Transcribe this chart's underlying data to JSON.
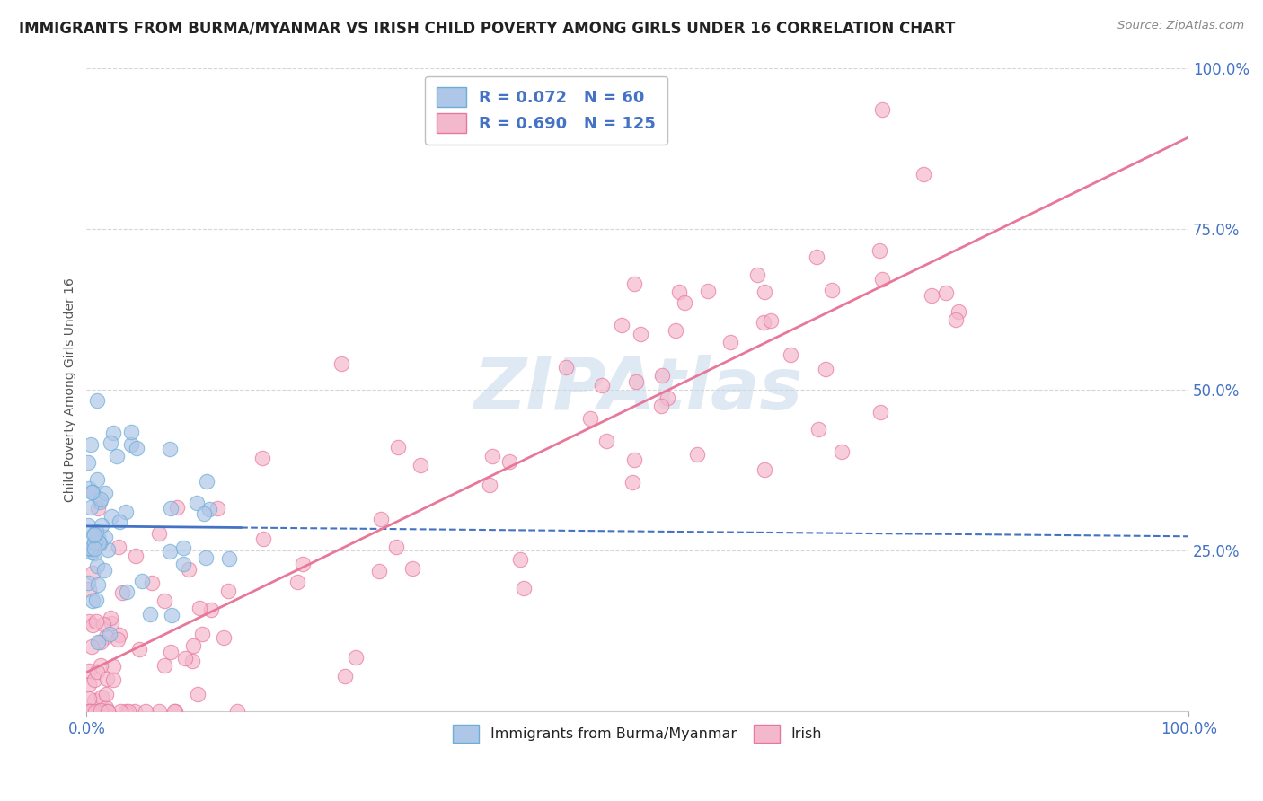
{
  "title": "IMMIGRANTS FROM BURMA/MYANMAR VS IRISH CHILD POVERTY AMONG GIRLS UNDER 16 CORRELATION CHART",
  "source": "Source: ZipAtlas.com",
  "ylabel": "Child Poverty Among Girls Under 16",
  "legend_entries": [
    {
      "label": "Immigrants from Burma/Myanmar",
      "color": "#aec6e8",
      "edge": "#6baed6",
      "R": "0.072",
      "N": "60"
    },
    {
      "label": "Irish",
      "color": "#f4b8cc",
      "edge": "#e8789a",
      "R": "0.690",
      "N": "125"
    }
  ],
  "watermark": "ZIPAtlas",
  "watermark_color": "#c8d8e8",
  "background_color": "#ffffff",
  "blue_line_color": "#4472c4",
  "pink_line_color": "#e8789a",
  "title_fontsize": 12,
  "axis_label_fontsize": 10,
  "tick_color": "#4472c4",
  "grid_color": "#cccccc"
}
